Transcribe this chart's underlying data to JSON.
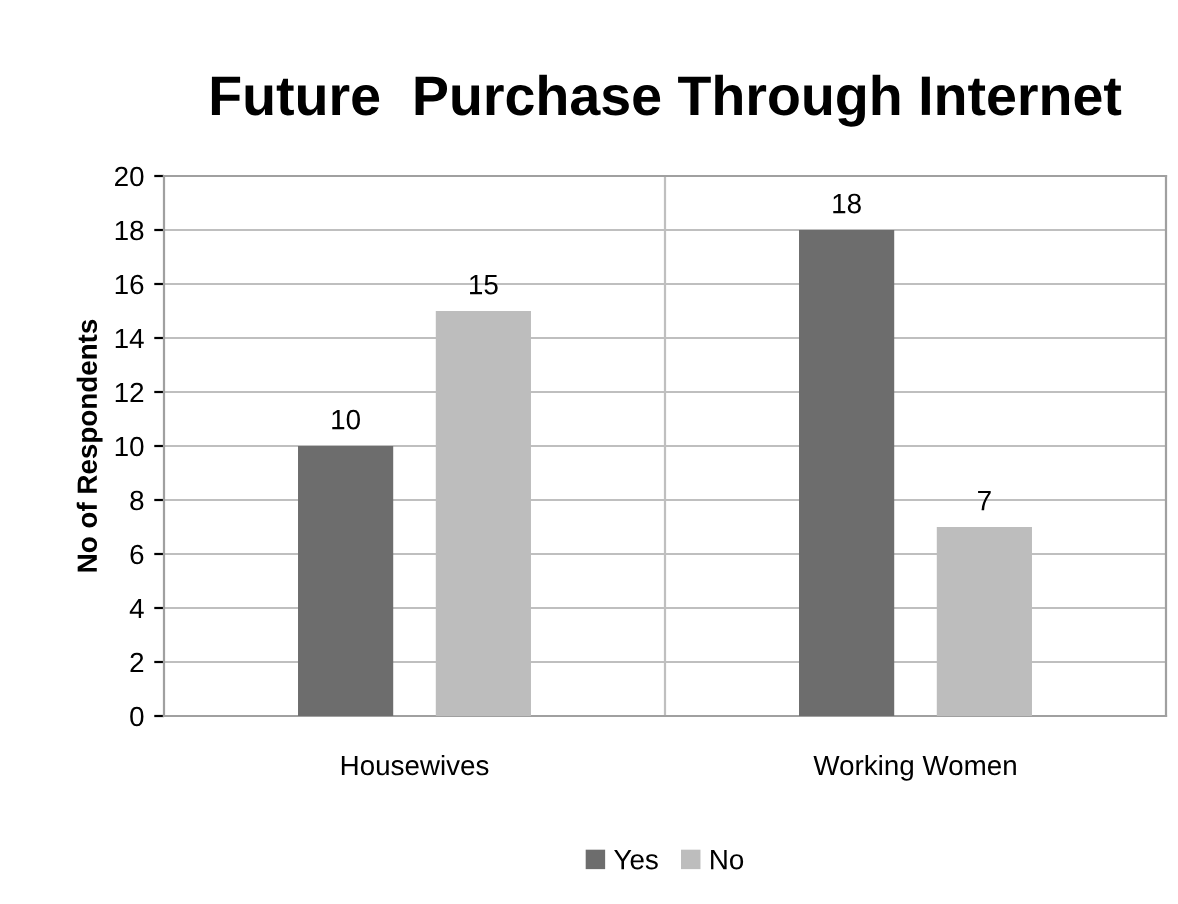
{
  "chart_data": {
    "type": "bar",
    "title": "Future  Purchase Through Internet",
    "ylabel": "No of Respondents",
    "categories": [
      "Housewives",
      "Working Women"
    ],
    "series": [
      {
        "name": "Yes",
        "color": "#6d6d6d",
        "values": [
          10,
          18
        ]
      },
      {
        "name": "No",
        "color": "#bdbdbd",
        "values": [
          15,
          7
        ]
      }
    ],
    "ylim": [
      0,
      20
    ],
    "yticks": [
      0,
      2,
      4,
      6,
      8,
      10,
      12,
      14,
      16,
      18,
      20
    ],
    "grid": true,
    "legend": "bottom",
    "data_labels": true
  }
}
